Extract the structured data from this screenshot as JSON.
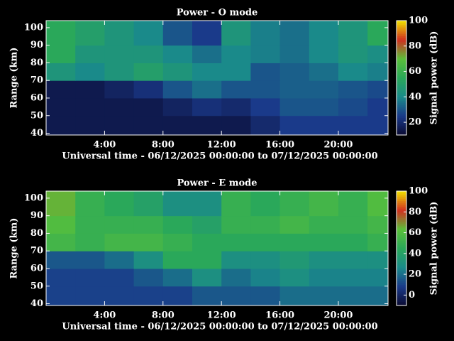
{
  "chart_data": [
    {
      "type": "heatmap",
      "title": "Power - O mode",
      "x_label": "Universal time - 06/12/2025 00:00:00 to 07/12/2025 00:00:00",
      "y_label": "Range (km)",
      "x_bins": [
        0,
        2,
        4,
        6,
        8,
        10,
        12,
        14,
        16,
        18,
        20,
        22,
        23.4
      ],
      "y_bins": [
        39,
        50,
        60,
        70,
        80,
        90,
        104
      ],
      "values": [
        [
          15,
          15,
          15,
          15,
          15,
          15,
          15,
          20,
          25,
          25,
          25,
          25
        ],
        [
          15,
          15,
          15,
          15,
          18,
          22,
          20,
          25,
          30,
          30,
          28,
          25
        ],
        [
          15,
          15,
          18,
          22,
          30,
          35,
          30,
          30,
          32,
          32,
          30,
          28
        ],
        [
          45,
          40,
          45,
          50,
          45,
          40,
          40,
          30,
          32,
          35,
          40,
          38
        ],
        [
          55,
          45,
          45,
          45,
          40,
          35,
          40,
          38,
          35,
          40,
          45,
          42
        ],
        [
          55,
          50,
          45,
          40,
          30,
          25,
          45,
          38,
          35,
          40,
          45,
          55
        ]
      ],
      "xlim": [
        0,
        23.4
      ],
      "ylim": [
        39,
        104
      ],
      "xticks": [
        {
          "value": 4,
          "label": "4:00"
        },
        {
          "value": 8,
          "label": "8:00"
        },
        {
          "value": 12,
          "label": "12:00"
        },
        {
          "value": 16,
          "label": "16:00"
        },
        {
          "value": 20,
          "label": "20:00"
        }
      ],
      "yticks": [
        40,
        50,
        60,
        70,
        80,
        90,
        100
      ],
      "colorbar": {
        "label": "Signal power (dB)",
        "zlim": [
          10,
          100
        ],
        "ticks": [
          20,
          40,
          60,
          80,
          100
        ]
      },
      "colormap": [
        "#0a0a30",
        "#1a3a8a",
        "#1a8a8a",
        "#2aa85a",
        "#5ac03a",
        "#d03020",
        "#f0e000"
      ]
    },
    {
      "type": "heatmap",
      "title": "Power - E mode",
      "x_label": "Universal time - 06/12/2025 00:00:00 to 07/12/2025 00:00:00",
      "y_label": "Range (km)",
      "x_bins": [
        0,
        2,
        4,
        6,
        8,
        10,
        12,
        14,
        16,
        18,
        20,
        22,
        23.4
      ],
      "y_bins": [
        39,
        50,
        60,
        70,
        80,
        90,
        104
      ],
      "values": [
        [
          10,
          10,
          10,
          10,
          10,
          15,
          15,
          15,
          20,
          20,
          20,
          20
        ],
        [
          10,
          10,
          10,
          15,
          20,
          30,
          20,
          25,
          30,
          25,
          25,
          25
        ],
        [
          15,
          15,
          20,
          30,
          45,
          45,
          30,
          30,
          35,
          30,
          30,
          30
        ],
        [
          55,
          50,
          55,
          55,
          50,
          45,
          45,
          45,
          45,
          45,
          45,
          50
        ],
        [
          60,
          50,
          50,
          50,
          45,
          40,
          50,
          50,
          55,
          50,
          50,
          55
        ],
        [
          65,
          50,
          45,
          40,
          30,
          30,
          50,
          45,
          50,
          55,
          50,
          60
        ]
      ],
      "xlim": [
        0,
        23.4
      ],
      "ylim": [
        39,
        104
      ],
      "xticks": [
        {
          "value": 4,
          "label": "4:00"
        },
        {
          "value": 8,
          "label": "8:00"
        },
        {
          "value": 12,
          "label": "12:00"
        },
        {
          "value": 16,
          "label": "16:00"
        },
        {
          "value": 20,
          "label": "20:00"
        }
      ],
      "yticks": [
        40,
        50,
        60,
        70,
        80,
        90,
        100
      ],
      "colorbar": {
        "label": "Signal power (dB)",
        "zlim": [
          -10,
          100
        ],
        "ticks": [
          0,
          20,
          40,
          60,
          80,
          100
        ]
      },
      "colormap": [
        "#0a0a30",
        "#1a3a8a",
        "#1a8a8a",
        "#2aa85a",
        "#5ac03a",
        "#d03020",
        "#f0e000"
      ]
    }
  ]
}
